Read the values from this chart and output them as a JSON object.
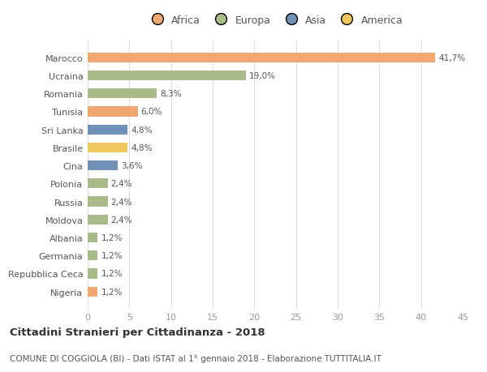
{
  "countries": [
    "Marocco",
    "Ucraina",
    "Romania",
    "Tunisia",
    "Sri Lanka",
    "Brasile",
    "Cina",
    "Polonia",
    "Russia",
    "Moldova",
    "Albania",
    "Germania",
    "Repubblica Ceca",
    "Nigeria"
  ],
  "values": [
    41.7,
    19.0,
    8.3,
    6.0,
    4.8,
    4.8,
    3.6,
    2.4,
    2.4,
    2.4,
    1.2,
    1.2,
    1.2,
    1.2
  ],
  "labels": [
    "41,7%",
    "19,0%",
    "8,3%",
    "6,0%",
    "4,8%",
    "4,8%",
    "3,6%",
    "2,4%",
    "2,4%",
    "2,4%",
    "1,2%",
    "1,2%",
    "1,2%",
    "1,2%"
  ],
  "colors": [
    "#f0a870",
    "#a8bb88",
    "#a8bb88",
    "#f0a870",
    "#7090b8",
    "#f0c860",
    "#7090b8",
    "#a8bb88",
    "#a8bb88",
    "#a8bb88",
    "#a8bb88",
    "#a8bb88",
    "#a8bb88",
    "#f0a870"
  ],
  "legend_labels": [
    "Africa",
    "Europa",
    "Asia",
    "America"
  ],
  "legend_colors": [
    "#f0a870",
    "#a8bb88",
    "#7090b8",
    "#f0c860"
  ],
  "title": "Cittadini Stranieri per Cittadinanza - 2018",
  "subtitle": "COMUNE DI COGGIOLA (BI) - Dati ISTAT al 1° gennaio 2018 - Elaborazione TUTTITALIA.IT",
  "xlim": [
    0,
    45
  ],
  "xticks": [
    0,
    5,
    10,
    15,
    20,
    25,
    30,
    35,
    40,
    45
  ],
  "background_color": "#ffffff",
  "grid_color": "#dddddd",
  "label_color": "#555555",
  "tick_color": "#999999"
}
